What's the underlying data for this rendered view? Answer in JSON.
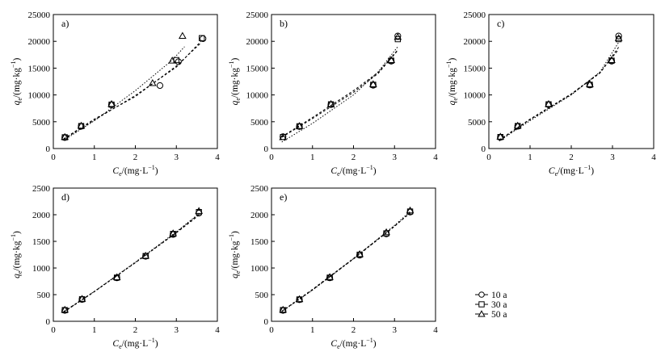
{
  "figure": {
    "legend": {
      "placement": "bottom-right",
      "entries": [
        {
          "label": "10 a",
          "marker": "circle-icon"
        },
        {
          "label": "30 a",
          "marker": "square-icon"
        },
        {
          "label": "50 a",
          "marker": "triangle-icon"
        }
      ]
    },
    "colors": {
      "markers": "#000000",
      "fit_lines": "#000000",
      "background": "#ffffff"
    }
  },
  "chart_data": [
    {
      "type": "scatter",
      "panel_label": "a)",
      "xlabel_sym": "C",
      "xlabel_sub": "e",
      "xlabel_unit": "/(mg·L",
      "xlabel_exp": "−1",
      "xlabel_close": ")",
      "ylabel_sym": "q",
      "ylabel_sub": "e",
      "ylabel_unit": "/(mg·kg",
      "ylabel_exp": "−1",
      "ylabel_close": ")",
      "xlim": [
        0,
        4
      ],
      "ylim": [
        0,
        25000
      ],
      "xticks": [
        0,
        1,
        2,
        3,
        4
      ],
      "yticks": [
        0,
        5000,
        10000,
        15000,
        20000,
        25000
      ],
      "series": [
        {
          "name": "10 a",
          "marker": "circle",
          "points": [
            [
              0.28,
              2050
            ],
            [
              0.68,
              4150
            ],
            [
              1.42,
              8150
            ],
            [
              2.6,
              11750
            ],
            [
              3.05,
              16200
            ],
            [
              3.65,
              20500
            ]
          ],
          "fit": "dash",
          "fit_points": [
            [
              0.25,
              1800
            ],
            [
              1.0,
              5500
            ],
            [
              2.0,
              9700
            ],
            [
              3.0,
              15400
            ],
            [
              3.6,
              19700
            ]
          ]
        },
        {
          "name": "30 a",
          "marker": "square",
          "points": [
            [
              0.28,
              2100
            ],
            [
              0.68,
              4200
            ],
            [
              1.42,
              8200
            ],
            [
              3.0,
              16500
            ],
            [
              3.62,
              20600
            ]
          ],
          "fit": "dash",
          "fit_points": [
            [
              0.25,
              1700
            ],
            [
              1.0,
              5300
            ],
            [
              2.0,
              9900
            ],
            [
              3.0,
              15200
            ],
            [
              3.6,
              20000
            ]
          ]
        },
        {
          "name": "50 a",
          "marker": "triangle",
          "points": [
            [
              0.28,
              2150
            ],
            [
              0.68,
              4250
            ],
            [
              1.42,
              8300
            ],
            [
              2.42,
              12200
            ],
            [
              2.9,
              16400
            ],
            [
              3.15,
              21000
            ]
          ],
          "fit": "dot",
          "fit_points": [
            [
              0.25,
              1500
            ],
            [
              1.0,
              5200
            ],
            [
              2.0,
              10800
            ],
            [
              2.9,
              16500
            ],
            [
              3.2,
              19000
            ]
          ]
        }
      ]
    },
    {
      "type": "scatter",
      "panel_label": "b)",
      "xlabel_sym": "C",
      "xlabel_sub": "e",
      "xlabel_unit": "/(mg·L",
      "xlabel_exp": "−1",
      "xlabel_close": ")",
      "ylabel_sym": "q",
      "ylabel_sub": "e",
      "ylabel_unit": "/(mg·kg",
      "ylabel_exp": "−1",
      "ylabel_close": ")",
      "xlim": [
        0,
        4
      ],
      "ylim": [
        0,
        25000
      ],
      "xticks": [
        0,
        1,
        2,
        3,
        4
      ],
      "yticks": [
        0,
        5000,
        10000,
        15000,
        20000,
        25000
      ],
      "series": [
        {
          "name": "10 a",
          "marker": "circle",
          "points": [
            [
              0.28,
              2200
            ],
            [
              0.68,
              4100
            ],
            [
              1.45,
              8200
            ],
            [
              2.48,
              11800
            ],
            [
              2.92,
              16300
            ],
            [
              3.08,
              21000
            ]
          ],
          "fit": "dash",
          "fit_points": [
            [
              0.25,
              2200
            ],
            [
              1.0,
              5800
            ],
            [
              2.0,
              10800
            ],
            [
              2.6,
              14200
            ],
            [
              3.08,
              18400
            ]
          ]
        },
        {
          "name": "30 a",
          "marker": "square",
          "points": [
            [
              0.28,
              2150
            ],
            [
              0.68,
              4150
            ],
            [
              1.45,
              8250
            ],
            [
              2.48,
              11900
            ],
            [
              2.92,
              16400
            ],
            [
              3.08,
              20400
            ]
          ],
          "fit": "dash",
          "fit_points": [
            [
              0.25,
              2100
            ],
            [
              1.0,
              5600
            ],
            [
              2.0,
              10500
            ],
            [
              2.6,
              14000
            ],
            [
              3.08,
              18300
            ]
          ]
        },
        {
          "name": "50 a",
          "marker": "triangle",
          "points": [
            [
              0.28,
              2100
            ],
            [
              0.68,
              4200
            ],
            [
              1.45,
              8300
            ],
            [
              2.48,
              12000
            ],
            [
              2.92,
              16500
            ],
            [
              3.08,
              20800
            ]
          ],
          "fit": "dot",
          "fit_points": [
            [
              0.25,
              1200
            ],
            [
              1.0,
              4700
            ],
            [
              2.0,
              10000
            ],
            [
              2.6,
              14300
            ],
            [
              3.08,
              19000
            ]
          ]
        }
      ]
    },
    {
      "type": "scatter",
      "panel_label": "c)",
      "xlabel_sym": "C",
      "xlabel_sub": "e",
      "xlabel_unit": "/(mg·L",
      "xlabel_exp": "−1",
      "xlabel_close": ")",
      "ylabel_sym": "q",
      "ylabel_sub": "e",
      "ylabel_unit": "/(mg·kg",
      "ylabel_exp": "−1",
      "ylabel_close": ")",
      "xlim": [
        0,
        4
      ],
      "ylim": [
        0,
        25000
      ],
      "xticks": [
        0,
        1,
        2,
        3,
        4
      ],
      "yticks": [
        0,
        5000,
        10000,
        15000,
        20000,
        25000
      ],
      "series": [
        {
          "name": "10 a",
          "marker": "circle",
          "points": [
            [
              0.28,
              2100
            ],
            [
              0.7,
              4150
            ],
            [
              1.45,
              8200
            ],
            [
              2.45,
              11850
            ],
            [
              2.98,
              16300
            ],
            [
              3.15,
              21000
            ]
          ],
          "fit": "dash",
          "fit_points": [
            [
              0.25,
              1600
            ],
            [
              1.0,
              5500
            ],
            [
              2.0,
              10200
            ],
            [
              2.7,
              14200
            ],
            [
              3.15,
              18500
            ]
          ]
        },
        {
          "name": "30 a",
          "marker": "square",
          "points": [
            [
              0.28,
              2150
            ],
            [
              0.7,
              4200
            ],
            [
              1.45,
              8250
            ],
            [
              2.45,
              11900
            ],
            [
              2.98,
              16400
            ],
            [
              3.15,
              20400
            ]
          ],
          "fit": "dash",
          "fit_points": [
            [
              0.25,
              1500
            ],
            [
              1.0,
              5400
            ],
            [
              2.0,
              10100
            ],
            [
              2.7,
              14100
            ],
            [
              3.15,
              18900
            ]
          ]
        },
        {
          "name": "50 a",
          "marker": "triangle",
          "points": [
            [
              0.28,
              2200
            ],
            [
              0.7,
              4250
            ],
            [
              1.45,
              8300
            ],
            [
              2.45,
              12000
            ],
            [
              2.98,
              16500
            ],
            [
              3.15,
              20600
            ]
          ],
          "fit": "dot",
          "fit_points": [
            [
              0.25,
              1400
            ],
            [
              1.0,
              5200
            ],
            [
              2.0,
              10000
            ],
            [
              2.7,
              14300
            ],
            [
              3.15,
              19800
            ]
          ]
        }
      ]
    },
    {
      "type": "scatter",
      "panel_label": "d)",
      "xlabel_sym": "C",
      "xlabel_sub": "e",
      "xlabel_unit": "/(mg·L",
      "xlabel_exp": "−1",
      "xlabel_close": ")",
      "ylabel_sym": "q",
      "ylabel_sub": "e",
      "ylabel_unit": "/(mg·kg",
      "ylabel_exp": "−1",
      "ylabel_close": ")",
      "xlim": [
        0,
        4
      ],
      "ylim": [
        0,
        2500
      ],
      "xticks": [
        0,
        1,
        2,
        3,
        4
      ],
      "yticks": [
        0,
        500,
        1000,
        1500,
        2000,
        2500
      ],
      "series": [
        {
          "name": "10 a",
          "marker": "circle",
          "points": [
            [
              0.28,
              205
            ],
            [
              0.7,
              410
            ],
            [
              1.55,
              815
            ],
            [
              2.25,
              1220
            ],
            [
              2.92,
              1630
            ],
            [
              3.55,
              2030
            ]
          ],
          "fit": "dash",
          "fit_points": [
            [
              0.25,
              180
            ],
            [
              1.0,
              560
            ],
            [
              2.0,
              1100
            ],
            [
              3.0,
              1660
            ],
            [
              3.55,
              1990
            ]
          ]
        },
        {
          "name": "30 a",
          "marker": "square",
          "points": [
            [
              0.28,
              210
            ],
            [
              0.7,
              415
            ],
            [
              1.55,
              820
            ],
            [
              2.25,
              1225
            ],
            [
              2.92,
              1640
            ],
            [
              3.55,
              2050
            ]
          ],
          "fit": "dash",
          "fit_points": [
            [
              0.25,
              170
            ],
            [
              1.0,
              555
            ],
            [
              2.0,
              1100
            ],
            [
              3.0,
              1670
            ],
            [
              3.55,
              2010
            ]
          ]
        },
        {
          "name": "50 a",
          "marker": "triangle",
          "points": [
            [
              0.28,
              215
            ],
            [
              0.7,
              420
            ],
            [
              1.55,
              825
            ],
            [
              2.25,
              1230
            ],
            [
              2.92,
              1650
            ],
            [
              3.55,
              2070
            ]
          ],
          "fit": "dot",
          "fit_points": [
            [
              0.25,
              175
            ],
            [
              1.0,
              560
            ],
            [
              2.0,
              1110
            ],
            [
              3.0,
              1680
            ],
            [
              3.55,
              2020
            ]
          ]
        }
      ]
    },
    {
      "type": "scatter",
      "panel_label": "e)",
      "xlabel_sym": "C",
      "xlabel_sub": "e",
      "xlabel_unit": "/(mg·L",
      "xlabel_exp": "−1",
      "xlabel_close": ")",
      "ylabel_sym": "q",
      "ylabel_sub": "e",
      "ylabel_unit": "/(mg·kg",
      "ylabel_exp": "−1",
      "ylabel_close": ")",
      "xlim": [
        0,
        4
      ],
      "ylim": [
        0,
        2500
      ],
      "xticks": [
        0,
        1,
        2,
        3,
        4
      ],
      "yticks": [
        0,
        500,
        1000,
        1500,
        2000,
        2500
      ],
      "series": [
        {
          "name": "10 a",
          "marker": "circle",
          "points": [
            [
              0.28,
              205
            ],
            [
              0.68,
              405
            ],
            [
              1.42,
              815
            ],
            [
              2.15,
              1240
            ],
            [
              2.8,
              1640
            ],
            [
              3.38,
              2050
            ]
          ],
          "fit": "dash",
          "fit_points": [
            [
              0.25,
              190
            ],
            [
              1.0,
              600
            ],
            [
              2.0,
              1180
            ],
            [
              3.0,
              1790
            ],
            [
              3.38,
              2030
            ]
          ]
        },
        {
          "name": "30 a",
          "marker": "square",
          "points": [
            [
              0.28,
              210
            ],
            [
              0.68,
              410
            ],
            [
              1.42,
              820
            ],
            [
              2.15,
              1250
            ],
            [
              2.8,
              1650
            ],
            [
              3.38,
              2060
            ]
          ],
          "fit": "dash",
          "fit_points": [
            [
              0.25,
              185
            ],
            [
              1.0,
              590
            ],
            [
              2.0,
              1170
            ],
            [
              3.0,
              1780
            ],
            [
              3.38,
              2040
            ]
          ]
        },
        {
          "name": "50 a",
          "marker": "triangle",
          "points": [
            [
              0.28,
              215
            ],
            [
              0.68,
              415
            ],
            [
              1.42,
              830
            ],
            [
              2.15,
              1260
            ],
            [
              2.8,
              1670
            ],
            [
              3.38,
              2080
            ]
          ],
          "fit": "dot",
          "fit_points": [
            [
              0.25,
              180
            ],
            [
              1.0,
              585
            ],
            [
              2.0,
              1175
            ],
            [
              3.0,
              1800
            ],
            [
              3.38,
              2060
            ]
          ]
        }
      ]
    }
  ]
}
